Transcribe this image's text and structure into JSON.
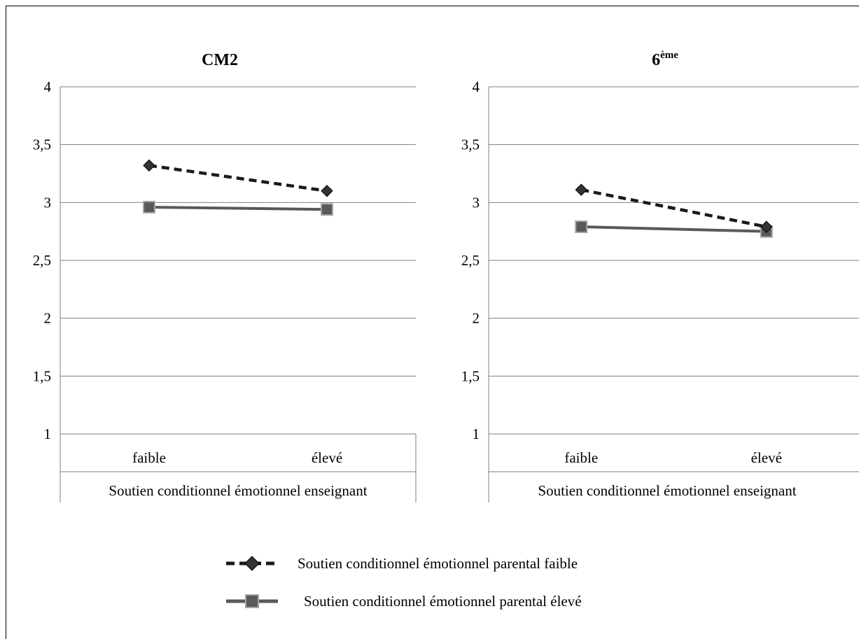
{
  "chart_data": [
    {
      "type": "line",
      "title": "CM2",
      "title_sup": "",
      "categories": [
        "faible",
        "élevé"
      ],
      "xlabel": "Soutien conditionnel émotionnel enseignant",
      "ylabel": "",
      "ylim": [
        1,
        4
      ],
      "yticks": [
        "1",
        "1,5",
        "2",
        "2,5",
        "3",
        "3,5",
        "4"
      ],
      "grid": true,
      "series": [
        {
          "name": "Soutien conditionnel émotionnel parental faible",
          "values": [
            3.32,
            3.1
          ],
          "color": "#1a1a1a",
          "style": "dashed",
          "marker": "diamond"
        },
        {
          "name": "Soutien conditionnel émotionnel parental élevé",
          "values": [
            2.96,
            2.94
          ],
          "color": "#595959",
          "style": "solid",
          "marker": "square"
        }
      ]
    },
    {
      "type": "line",
      "title": "6",
      "title_sup": "ème",
      "categories": [
        "faible",
        "élevé"
      ],
      "xlabel": "Soutien conditionnel émotionnel enseignant",
      "ylabel": "",
      "ylim": [
        1,
        4
      ],
      "yticks": [
        "1",
        "1,5",
        "2",
        "2,5",
        "3",
        "3,5",
        "4"
      ],
      "grid": true,
      "series": [
        {
          "name": "Soutien conditionnel émotionnel parental faible",
          "values": [
            3.11,
            2.79
          ],
          "color": "#1a1a1a",
          "style": "dashed",
          "marker": "diamond"
        },
        {
          "name": "Soutien conditionnel émotionnel parental élevé",
          "values": [
            2.79,
            2.75
          ],
          "color": "#595959",
          "style": "solid",
          "marker": "square"
        }
      ]
    }
  ],
  "legend": {
    "placement": "bottom",
    "items": [
      {
        "label": "Soutien conditionnel émotionnel parental faible",
        "style": "dashed",
        "marker": "diamond",
        "color": "#1a1a1a"
      },
      {
        "label": "Soutien conditionnel émotionnel parental élevé",
        "style": "solid",
        "marker": "square",
        "color": "#595959"
      }
    ]
  }
}
